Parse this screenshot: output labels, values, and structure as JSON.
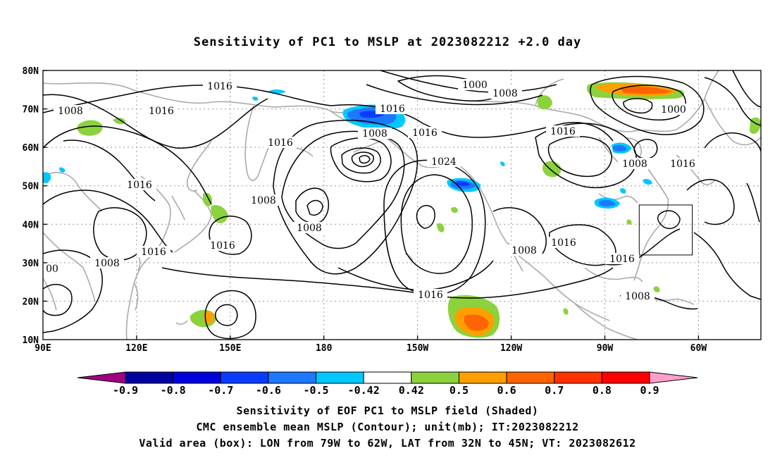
{
  "title": "Sensitivity of PC1 to MSLP at 2023082212 +2.0 day",
  "map": {
    "lat_range": [
      10,
      80
    ],
    "lon_range_east": [
      90,
      320
    ],
    "lat_labels": [
      "80N",
      "70N",
      "60N",
      "50N",
      "40N",
      "30N",
      "20N",
      "10N"
    ],
    "lon_labels": [
      "90E",
      "120E",
      "150E",
      "180",
      "150W",
      "120W",
      "90W",
      "60W"
    ],
    "grid_style": "dotted",
    "coastline_color": "#aaaaaa",
    "contour_color": "#000000",
    "contour_labels": [
      {
        "text": "1016"
      },
      {
        "text": "1008"
      },
      {
        "text": "1016"
      },
      {
        "text": "1016"
      },
      {
        "text": "1016"
      },
      {
        "text": "1008"
      },
      {
        "text": "1016"
      },
      {
        "text": "1016"
      },
      {
        "text": "1008"
      },
      {
        "text": "1016"
      },
      {
        "text": "1008"
      },
      {
        "text": "1008"
      },
      {
        "text": "1000"
      },
      {
        "text": "1008"
      },
      {
        "text": "1016"
      },
      {
        "text": "1024"
      },
      {
        "text": "1016"
      },
      {
        "text": "1008"
      },
      {
        "text": "1016"
      },
      {
        "text": "1016"
      },
      {
        "text": "1000"
      },
      {
        "text": "1016"
      },
      {
        "text": "1008"
      },
      {
        "text": "1016"
      },
      {
        "text": "1016"
      },
      {
        "text": "1008"
      },
      {
        "text": "00"
      }
    ],
    "valid_box": {
      "lon_west": 79,
      "lon_east": 62,
      "lat_south": 32,
      "lat_north": 45
    }
  },
  "colorbar": {
    "colors": [
      "#a0007f",
      "#0000a0",
      "#0000dc",
      "#0a3cff",
      "#1e78ff",
      "#00c8ff",
      "#ffffff",
      "#8cd23c",
      "#ffa000",
      "#ff6400",
      "#ff3200",
      "#ff0000",
      "#ff9ecb"
    ],
    "labels": [
      "-0.9",
      "-0.8",
      "-0.7",
      "-0.6",
      "-0.5",
      "-0.42",
      "0.42",
      "0.5",
      "0.6",
      "0.7",
      "0.8",
      "0.9"
    ]
  },
  "captions": [
    "Sensitivity of EOF PC1 to MSLP field (Shaded)",
    "CMC ensemble mean MSLP (Contour); unit(mb); IT:2023082212",
    "Valid area (box): LON from 79W to 62W, LAT from 32N to 45N; VT: 2023082612"
  ]
}
